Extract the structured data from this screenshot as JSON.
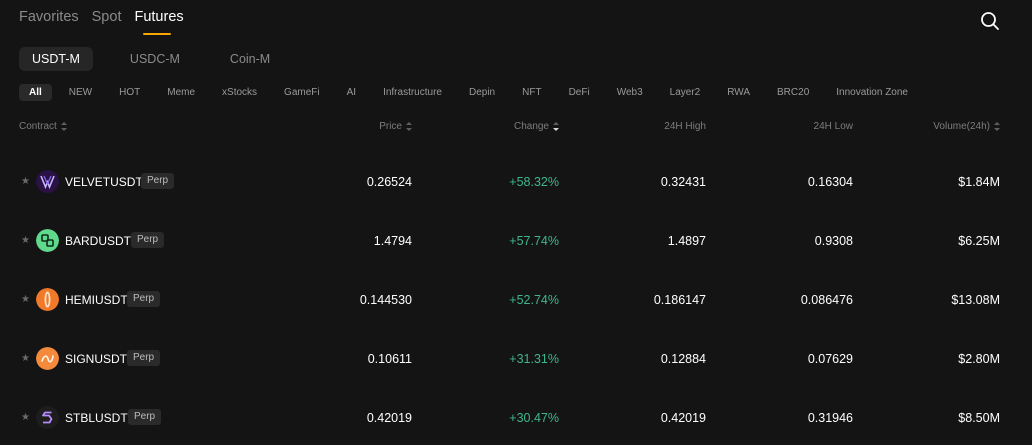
{
  "top_tabs": [
    "Favorites",
    "Spot",
    "Futures"
  ],
  "segments": [
    "USDT-M",
    "USDC-M",
    "Coin-M"
  ],
  "categories": [
    "All",
    "NEW",
    "HOT",
    "Meme",
    "xStocks",
    "GameFi",
    "AI",
    "Infrastructure",
    "Depin",
    "NFT",
    "DeFi",
    "Web3",
    "Layer2",
    "RWA",
    "BRC20",
    "Innovation Zone"
  ],
  "columns": {
    "contract": "Contract",
    "price": "Price",
    "change": "Change",
    "high": "24H High",
    "low": "24H Low",
    "volume": "Volume(24h)"
  },
  "rows": [
    {
      "symbol": "VELVETUSDT",
      "badge": "Perp",
      "price": "0.26524",
      "change": "+58.32%",
      "high": "0.32431",
      "low": "0.16304",
      "volume": "$1.84M",
      "icon": "velvet-icon"
    },
    {
      "symbol": "BARDUSDT",
      "badge": "Perp",
      "price": "1.4794",
      "change": "+57.74%",
      "high": "1.4897",
      "low": "0.9308",
      "volume": "$6.25M",
      "icon": "bard-icon"
    },
    {
      "symbol": "HEMIUSDT",
      "badge": "Perp",
      "price": "0.144530",
      "change": "+52.74%",
      "high": "0.186147",
      "low": "0.086476",
      "volume": "$13.08M",
      "icon": "hemi-icon"
    },
    {
      "symbol": "SIGNUSDT",
      "badge": "Perp",
      "price": "0.10611",
      "change": "+31.31%",
      "high": "0.12884",
      "low": "0.07629",
      "volume": "$2.80M",
      "icon": "sign-icon"
    },
    {
      "symbol": "STBLUSDT",
      "badge": "Perp",
      "price": "0.42019",
      "change": "+30.47%",
      "high": "0.42019",
      "low": "0.31946",
      "volume": "$8.50M",
      "icon": "stbl-icon"
    }
  ],
  "colors": {
    "background": "#141414",
    "accent": "#f7a600",
    "positive": "#3fb68b"
  }
}
